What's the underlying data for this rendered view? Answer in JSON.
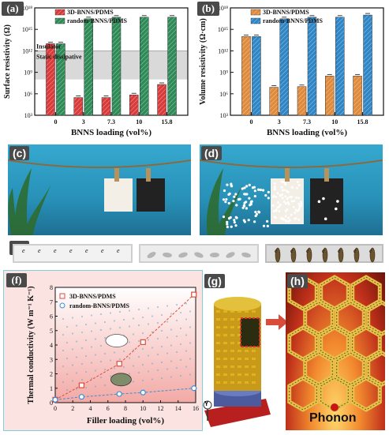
{
  "labels": {
    "a": "(a)",
    "b": "(b)",
    "c": "(c)",
    "d": "(d)",
    "e": "(e)",
    "f": "(f)",
    "g": "(g)",
    "h": "(h)"
  },
  "e_letter": "e",
  "g_axis_label": "Y",
  "phonon_label": "Phonon",
  "colors": {
    "red": "#d93a3a",
    "green": "#2e8b57",
    "orange": "#e08a3c",
    "blue": "#2f86c6",
    "insulator_band": "#d9d9d9",
    "sky": "#2ea0c8"
  },
  "chart_data": [
    {
      "id": "a",
      "type": "bar",
      "categories": [
        "0",
        "3",
        "7.3",
        "10",
        "15.8"
      ],
      "series": [
        {
          "name": "3D-BNNS/PDMS",
          "values": [
            10000000000000.0,
            300000.0,
            300000.0,
            700000.0,
            20000000.0
          ]
        },
        {
          "name": "random-BNNS/PDMS",
          "values": [
            10000000000000.0,
            3e+16,
            5e+16,
            5e+16,
            5e+16
          ]
        }
      ],
      "xlabel": "BNNS loading (vol%)",
      "ylabel": "Surface resistivity (Ω)",
      "ylim": [
        1000.0,
        1e+18
      ],
      "log_scale": true,
      "yticks": [
        "10³",
        "10⁶",
        "10⁹",
        "10¹²",
        "10¹⁵",
        "10¹⁸"
      ],
      "annotations": [
        "Insulator",
        "Static dissipative"
      ],
      "legend_position": "top-left"
    },
    {
      "id": "b",
      "type": "bar",
      "categories": [
        "0",
        "3",
        "7.3",
        "10",
        "15.8"
      ],
      "series": [
        {
          "name": "3D-BNNS/PDMS",
          "values": [
            100000000000000.0,
            8000000.0,
            10000000.0,
            300000000.0,
            300000000.0
          ]
        },
        {
          "name": "random-BNNS/PDMS",
          "values": [
            100000000000000.0,
            3e+16,
            5e+16,
            5e+16,
            1e+17
          ]
        }
      ],
      "xlabel": "BNNS loading (vol%)",
      "ylabel": "Volume resistivity (Ω·cm)",
      "ylim": [
        1000.0,
        1e+18
      ],
      "log_scale": true,
      "yticks": [
        "10³",
        "10⁶",
        "10⁹",
        "10¹²",
        "10¹⁵",
        "10¹⁸"
      ],
      "legend_position": "top-left"
    },
    {
      "id": "f",
      "type": "scatter",
      "series": [
        {
          "name": "3D-BNNS/PDMS",
          "x": [
            0,
            3,
            7.3,
            10,
            15.8
          ],
          "y": [
            0.2,
            1.2,
            2.7,
            4.2,
            7.5
          ]
        },
        {
          "name": "random-BNNS/PDMS",
          "x": [
            0,
            3,
            7.3,
            10,
            15.8
          ],
          "y": [
            0.2,
            0.4,
            0.6,
            0.7,
            1.0
          ]
        }
      ],
      "xlabel": "Filler loading (vol%)",
      "ylabel": "Thermal conductivity (W m⁻¹ K⁻¹)",
      "xlim": [
        0,
        16
      ],
      "ylim": [
        0,
        8
      ],
      "xticks": [
        "0",
        "2",
        "4",
        "6",
        "8",
        "10",
        "12",
        "14",
        "16"
      ],
      "yticks": [
        "0",
        "1",
        "2",
        "3",
        "4",
        "5",
        "6",
        "7",
        "8"
      ],
      "legend_position": "top-left"
    }
  ]
}
